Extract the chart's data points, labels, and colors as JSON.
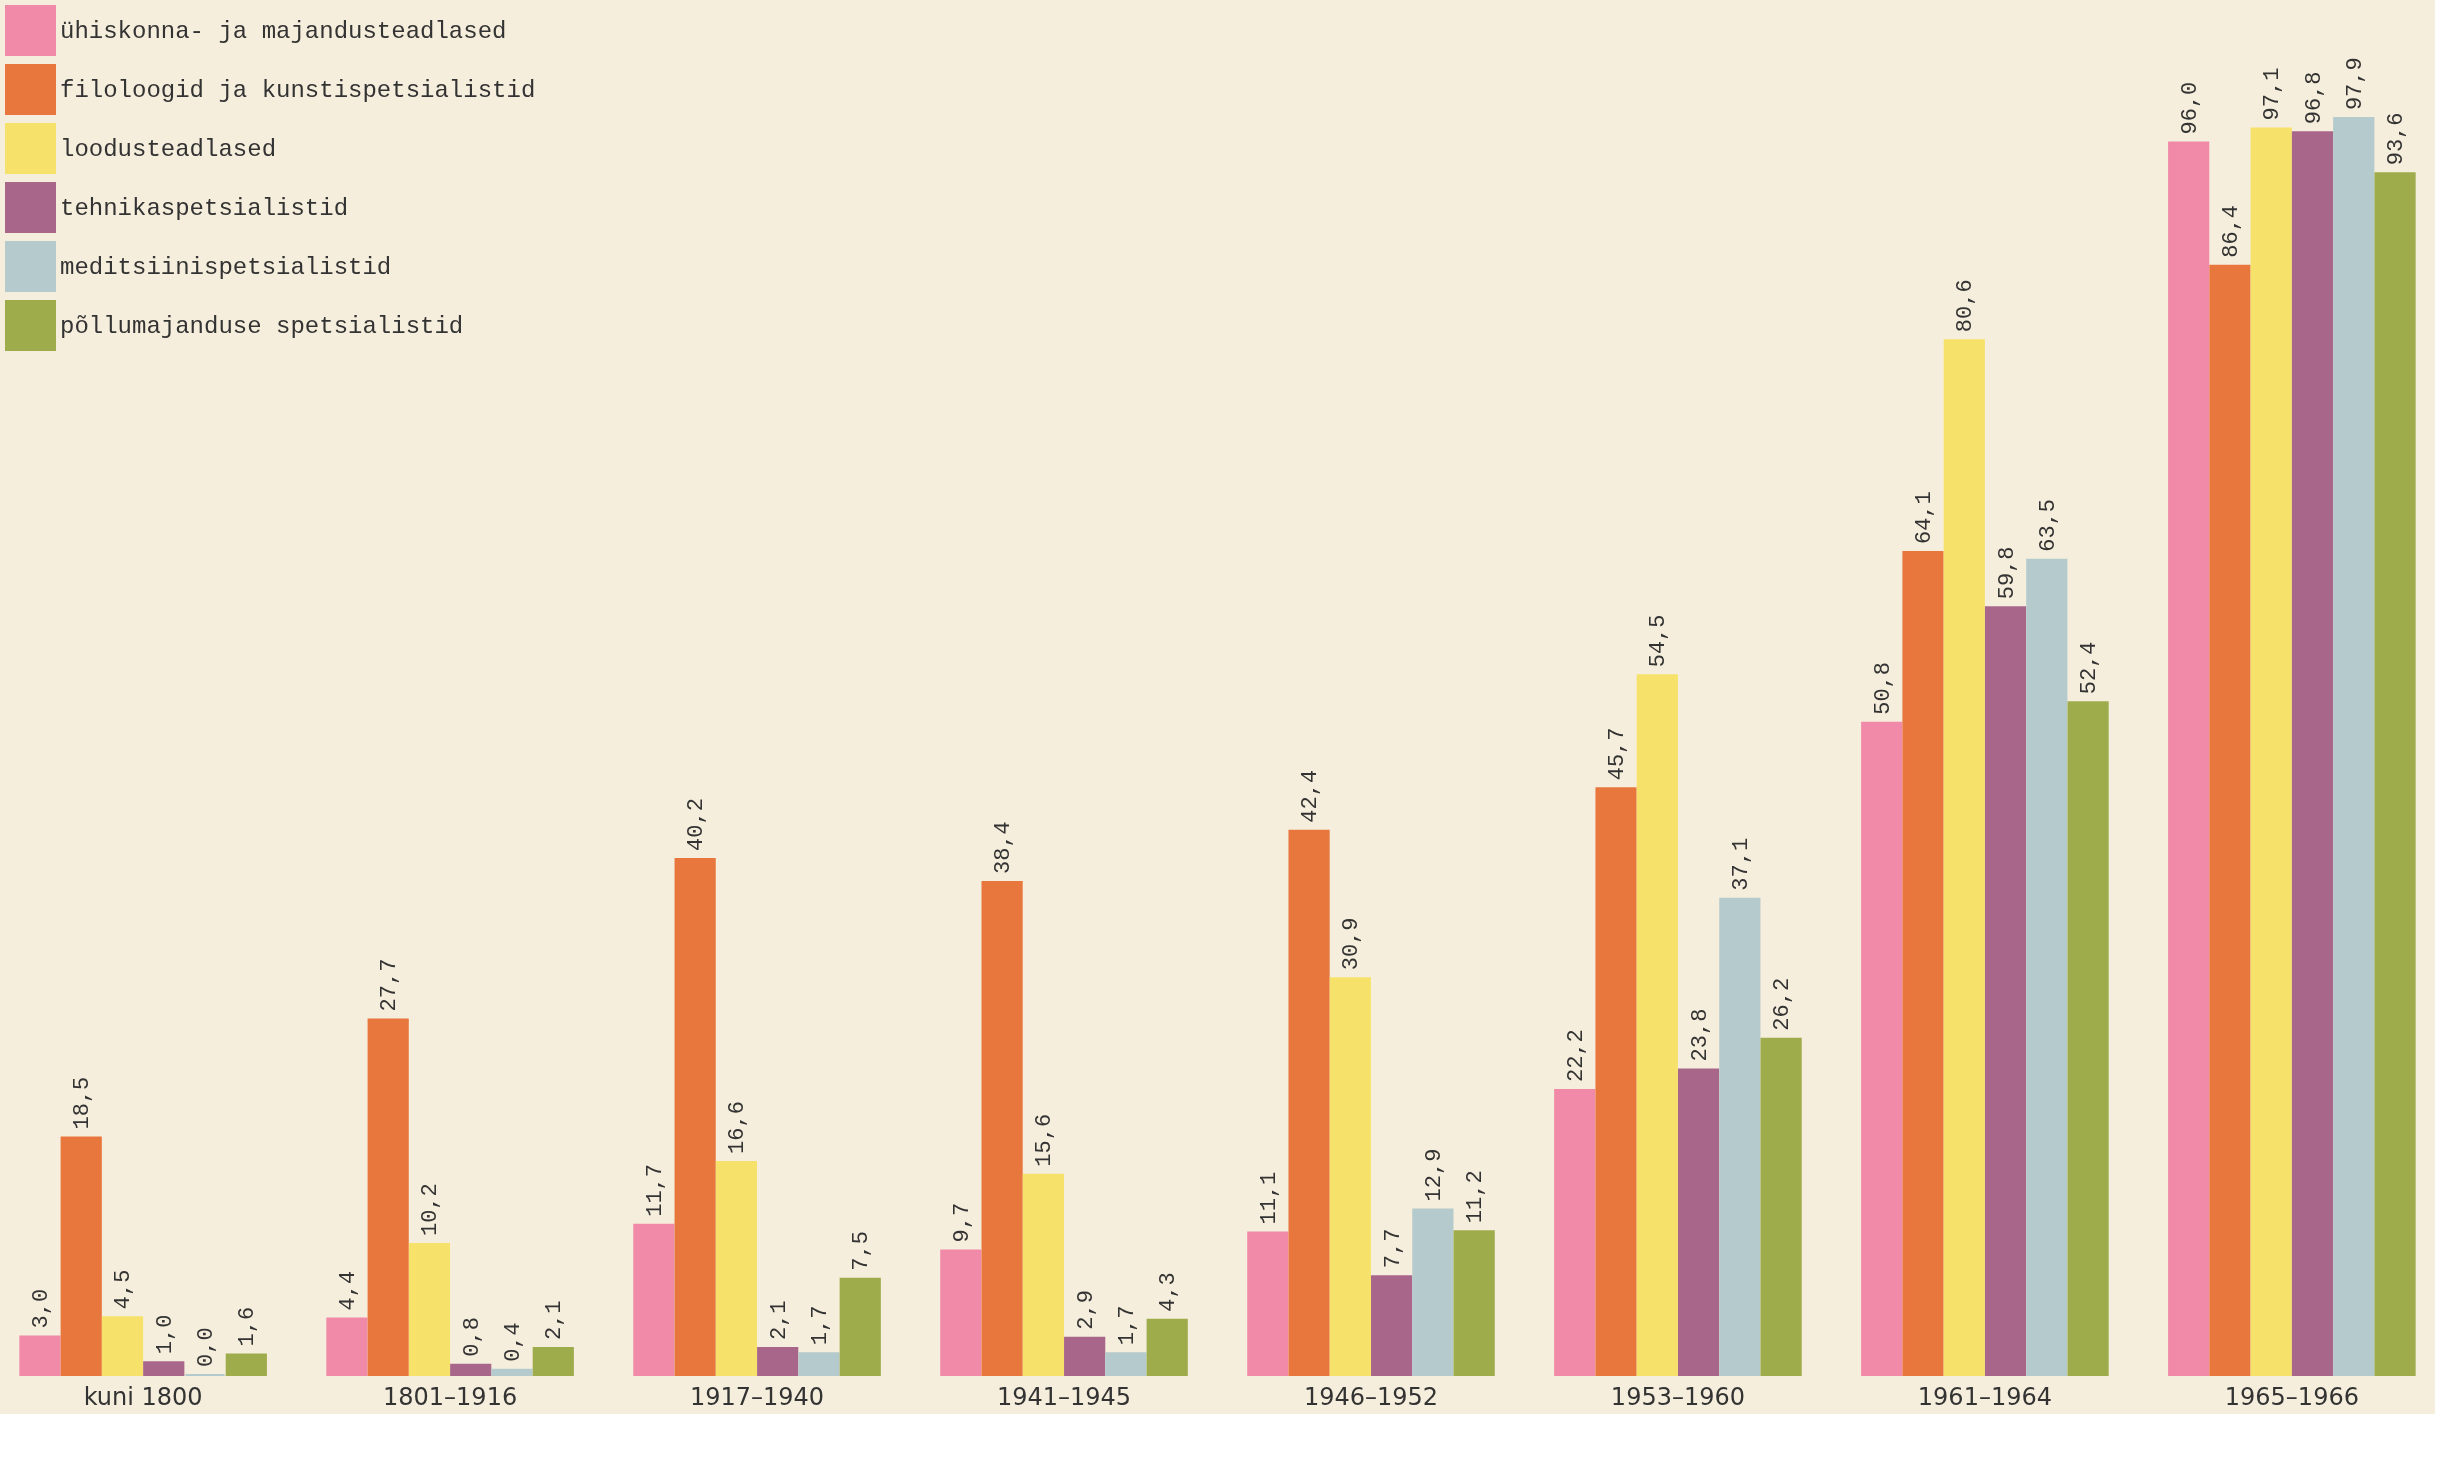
{
  "chart_data": {
    "type": "bar",
    "categories": [
      "kuni 1800",
      "1801–1916",
      "1917–1940",
      "1941–1945",
      "1946–1952",
      "1953–1960",
      "1961–1964",
      "1965–1966"
    ],
    "series": [
      {
        "name": "ühiskonna- ja majandusteadlased",
        "color": "#f08aa8",
        "values": [
          3.0,
          4.4,
          11.7,
          9.7,
          11.1,
          22.2,
          50.8,
          96.0
        ],
        "value_labels": [
          "3,0",
          "4,4",
          "11,7",
          "9,7",
          "11,1",
          "22,2",
          "50,8",
          "96,0"
        ]
      },
      {
        "name": "filoloogid ja kunstispetsialistid",
        "color": "#e8773e",
        "values": [
          18.5,
          27.7,
          40.2,
          38.4,
          42.4,
          45.7,
          64.1,
          86.4
        ],
        "value_labels": [
          "18,5",
          "27,7",
          "40,2",
          "38,4",
          "42,4",
          "45,7",
          "64,1",
          "86,4"
        ]
      },
      {
        "name": "loodusteadlased",
        "color": "#f6e26a",
        "values": [
          4.5,
          10.2,
          16.6,
          15.6,
          30.9,
          54.5,
          80.6,
          97.1
        ],
        "value_labels": [
          "4,5",
          "10,2",
          "16,6",
          "15,6",
          "30,9",
          "54,5",
          "80,6",
          "97,1"
        ]
      },
      {
        "name": "tehnikaspetsialistid",
        "color": "#a8678a",
        "values": [
          1.0,
          0.8,
          2.1,
          2.9,
          7.7,
          23.8,
          59.8,
          96.8
        ],
        "value_labels": [
          "1,0",
          "0,8",
          "2,1",
          "2,9",
          "7,7",
          "23,8",
          "59,8",
          "96,8"
        ]
      },
      {
        "name": "meditsiinispetsialistid",
        "color": "#b4cacc",
        "values": [
          0.0,
          0.4,
          1.7,
          1.7,
          12.9,
          37.1,
          63.5,
          97.9
        ],
        "value_labels": [
          "0,0",
          "0,4",
          "1,7",
          "1,7",
          "12,9",
          "37,1",
          "63,5",
          "97,9"
        ]
      },
      {
        "name": "põllumajanduse spetsialistid",
        "color": "#9eac4c",
        "values": [
          1.6,
          2.1,
          7.5,
          4.3,
          11.2,
          26.2,
          52.4,
          93.6
        ],
        "value_labels": [
          "1,6",
          "2,1",
          "7,5",
          "4,3",
          "11,2",
          "26,2",
          "52,4",
          "93,6"
        ]
      }
    ],
    "legend": "top left",
    "grid": false,
    "tick_labels": "x"
  }
}
